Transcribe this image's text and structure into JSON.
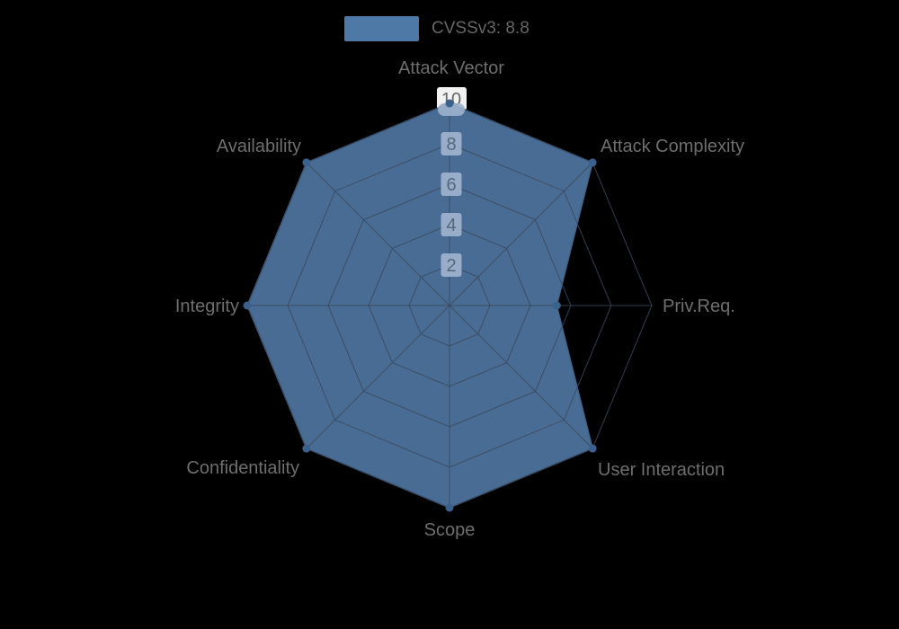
{
  "chart_data": {
    "type": "radar",
    "legend": {
      "label": "CVSSv3: 8.8",
      "swatch_color": "#4e79a7",
      "position": "top"
    },
    "axes": [
      "Attack Vector",
      "Attack Complexity",
      "Priv.Req.",
      "User Interaction",
      "Scope",
      "Confidentiality",
      "Integrity",
      "Availability"
    ],
    "series": [
      {
        "name": "CVSSv3: 8.8",
        "values": [
          10,
          10,
          5.3,
          10,
          10,
          10,
          10,
          10
        ],
        "fill_color": "#4a6f98",
        "line_color": "#3f648c",
        "marker_color": "#3a608c"
      }
    ],
    "radial_ticks": [
      2,
      4,
      6,
      8,
      10
    ],
    "rlim": [
      0,
      10
    ],
    "grid": true,
    "legend_position": "top"
  },
  "colors": {
    "background": "#000000",
    "accent_blue": "#4e79a7",
    "grid_line": "#3c485a",
    "tick_box": "#9eb3cd",
    "tick_box_top": "#f1f1f1",
    "tick_text": "#57687c",
    "tick_text_top": "#666666",
    "axis_label_text": "#6e6e6e",
    "legend_text": "#656565"
  }
}
